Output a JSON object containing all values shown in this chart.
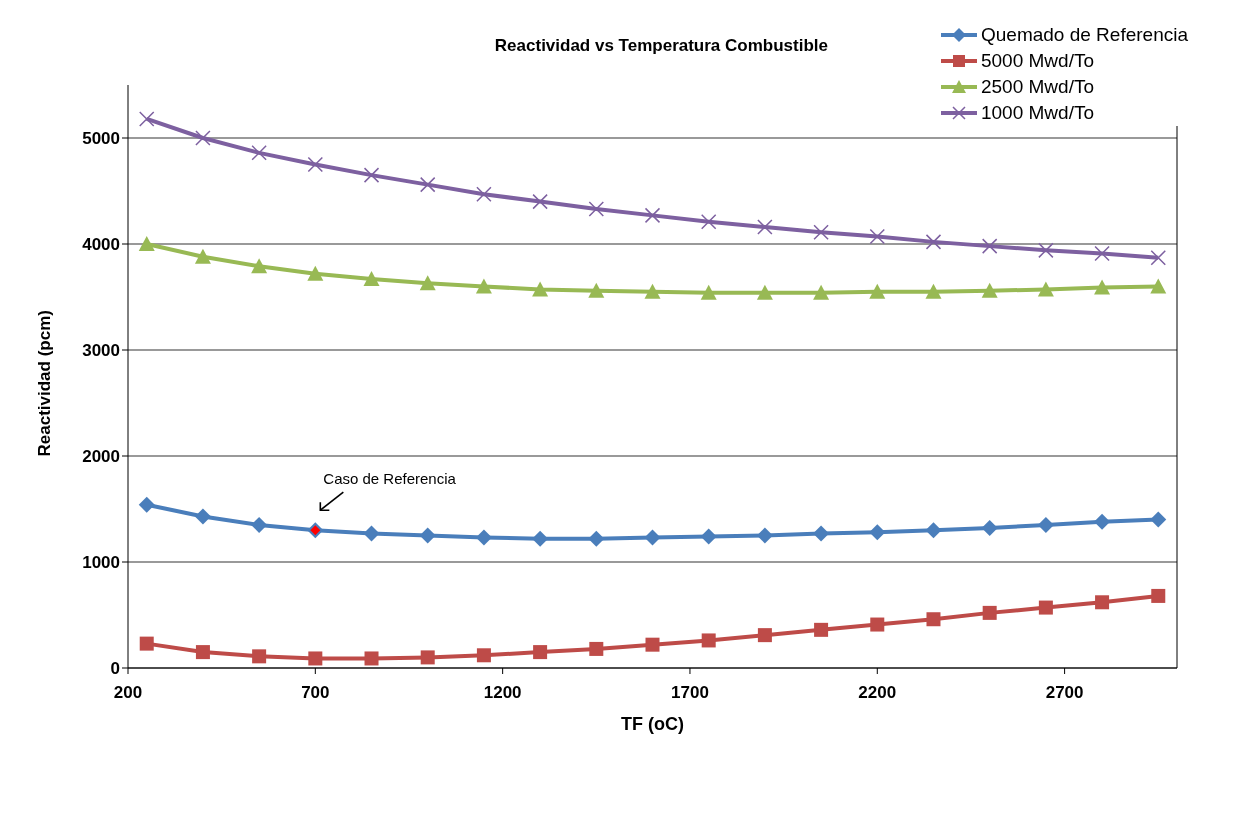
{
  "chart_data": {
    "type": "line",
    "title": "Reactividad vs Temperatura Combustible",
    "xlabel": "TF (oC)",
    "ylabel": "Reactividad (pcm)",
    "x": [
      250,
      400,
      550,
      700,
      850,
      1000,
      1150,
      1300,
      1450,
      1600,
      1750,
      1900,
      2050,
      2200,
      2350,
      2500,
      2650,
      2800,
      2950
    ],
    "xlim": [
      200,
      3000
    ],
    "xticks": [
      200,
      700,
      1200,
      1700,
      2200,
      2700
    ],
    "ylim": [
      0,
      5500
    ],
    "yticks": [
      0,
      1000,
      2000,
      3000,
      4000,
      5000
    ],
    "grid": "y",
    "legend": "top right",
    "line_style": "solid",
    "series": [
      {
        "name": "Quemado de Referencia",
        "color": "#4a7ebb",
        "marker": "diamond",
        "values": [
          1540,
          1430,
          1350,
          1300,
          1270,
          1250,
          1230,
          1220,
          1220,
          1230,
          1240,
          1250,
          1270,
          1280,
          1300,
          1320,
          1350,
          1380,
          1400
        ]
      },
      {
        "name": "5000 Mwd/To",
        "color": "#be4b48",
        "marker": "square",
        "values": [
          230,
          150,
          110,
          90,
          90,
          100,
          120,
          150,
          180,
          220,
          260,
          310,
          360,
          410,
          460,
          520,
          570,
          620,
          680
        ]
      },
      {
        "name": "2500 Mwd/To",
        "color": "#98b954",
        "marker": "triangle",
        "values": [
          4000,
          3880,
          3790,
          3720,
          3670,
          3630,
          3600,
          3570,
          3560,
          3550,
          3540,
          3540,
          3540,
          3550,
          3550,
          3560,
          3570,
          3590,
          3600
        ]
      },
      {
        "name": "1000 Mwd/To",
        "color": "#7d60a0",
        "marker": "cross",
        "values": [
          5180,
          5000,
          4860,
          4750,
          4650,
          4560,
          4470,
          4400,
          4330,
          4270,
          4210,
          4160,
          4110,
          4070,
          4020,
          3980,
          3940,
          3910,
          3870
        ]
      },
      {
        "type": "scatter",
        "color": "#ff0000",
        "marker": "diamond",
        "x": [
          700
        ],
        "values": [
          1300
        ]
      }
    ],
    "annotations": [
      {
        "text": "Caso de Referencia",
        "x": 700,
        "y": 1300
      }
    ]
  }
}
